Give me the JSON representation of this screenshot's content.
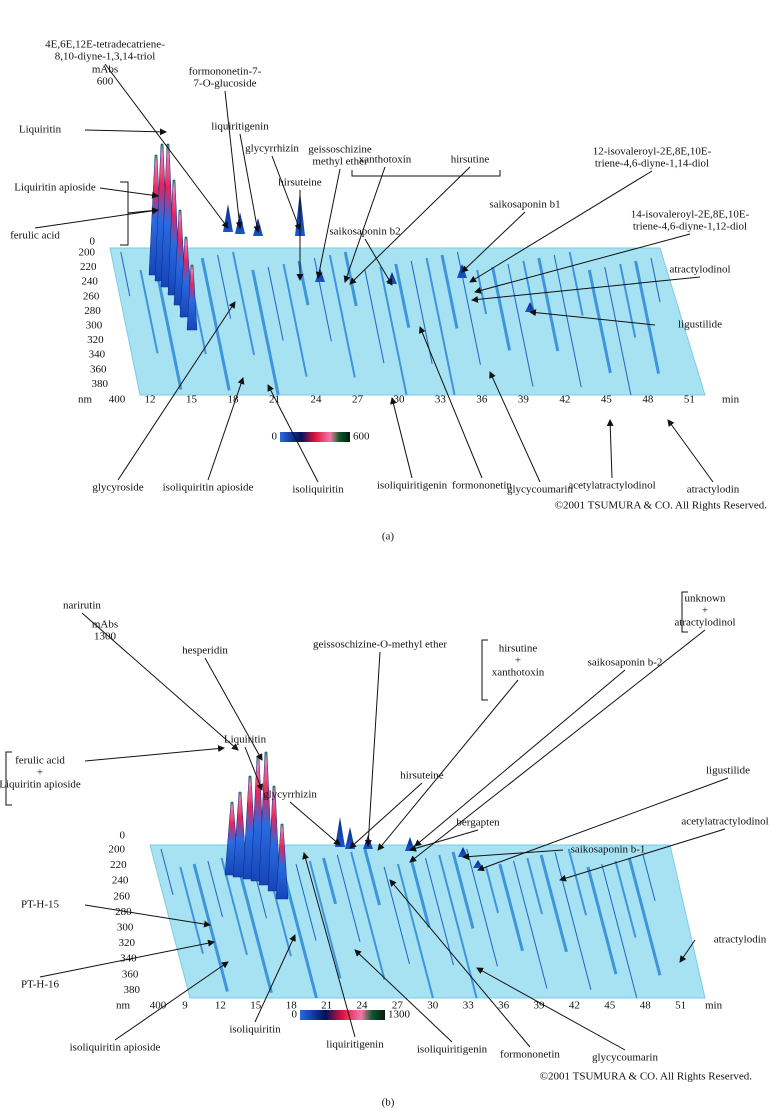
{
  "panels": [
    {
      "panel_label": "(a)",
      "copyright": "©2001 TSUMURA & CO. All Rights Reserved.",
      "z_label": "mAbs",
      "z_max": 600,
      "z_min": 0,
      "wavelength_unit": "nm",
      "wavelength_end": 400,
      "wavelength_ticks": [
        200,
        220,
        240,
        260,
        280,
        300,
        320,
        340,
        360,
        380
      ],
      "time_unit": "min",
      "time_ticks": [
        12,
        15,
        18,
        21,
        24,
        27,
        30,
        33,
        36,
        39,
        42,
        45,
        48,
        51
      ],
      "compounds": [
        {
          "label": [
            "4E,6E,12E-tetradecatriene-",
            "8,10-diyne-1,3,14-triol"
          ]
        },
        {
          "label": [
            "formononetin-7-",
            "7-O-glucoside"
          ]
        },
        {
          "label": [
            "liquiritigenin"
          ]
        },
        {
          "label": [
            "glycyrrhizin"
          ]
        },
        {
          "label": [
            "geissoschizine",
            "methyl ether"
          ]
        },
        {
          "label": [
            "xanthotoxin"
          ]
        },
        {
          "label": [
            "hirsutine"
          ]
        },
        {
          "label": [
            "Liquiritin"
          ]
        },
        {
          "label": [
            "Liquiritin apioside"
          ]
        },
        {
          "label": [
            "ferulic acid"
          ]
        },
        {
          "label": [
            "hirsuteine"
          ]
        },
        {
          "label": [
            "saikosaponin b2"
          ]
        },
        {
          "label": [
            "saikosaponin b1"
          ]
        },
        {
          "label": [
            "12-isovaleroyl-2E,8E,10E-",
            "triene-4,6-diyne-1,14-diol"
          ]
        },
        {
          "label": [
            "14-isovaleroyl-2E,8E,10E-",
            "triene-4,6-diyne-1,12-diol"
          ]
        },
        {
          "label": [
            "atractylodinol"
          ]
        },
        {
          "label": [
            "ligustilide"
          ]
        },
        {
          "label": [
            "glycyroside"
          ]
        },
        {
          "label": [
            "isoliquiritin apioside"
          ]
        },
        {
          "label": [
            "isoliquiritin"
          ]
        },
        {
          "label": [
            "isoliquiritigenin"
          ]
        },
        {
          "label": [
            "formononetin"
          ]
        },
        {
          "label": [
            "glycycoumarin"
          ]
        },
        {
          "label": [
            "acetylatractylodinol"
          ]
        },
        {
          "label": [
            "atractylodin"
          ]
        }
      ]
    },
    {
      "panel_label": "(b)",
      "copyright": "©2001 TSUMURA & CO. All Rights Reserved.",
      "z_label": "mAbs",
      "z_max": 1300,
      "z_min": 0,
      "wavelength_unit": "nm",
      "wavelength_end": 400,
      "wavelength_ticks": [
        200,
        220,
        240,
        260,
        280,
        300,
        320,
        340,
        360,
        380
      ],
      "time_unit": "min",
      "time_ticks": [
        9,
        12,
        15,
        18,
        21,
        24,
        27,
        30,
        33,
        36,
        39,
        42,
        45,
        48,
        51
      ],
      "compounds": [
        {
          "label": [
            "narirutin"
          ]
        },
        {
          "label": [
            "hesperidin"
          ]
        },
        {
          "label": [
            "geissoschizine-O-methyl ether"
          ]
        },
        {
          "label": [
            "hirsutine",
            "+",
            "xanthotoxin"
          ]
        },
        {
          "label": [
            "saikosaponin b-2"
          ]
        },
        {
          "label": [
            "unknown",
            "+",
            "atractylodinol"
          ]
        },
        {
          "label": [
            "ferulic acid",
            "+",
            "Liquiritin apioside"
          ]
        },
        {
          "label": [
            "Liquiritin"
          ]
        },
        {
          "label": [
            "glycyrrhizin"
          ]
        },
        {
          "label": [
            "hirsuteine"
          ]
        },
        {
          "label": [
            "bergapten"
          ]
        },
        {
          "label": [
            "saikosaponin b-1"
          ]
        },
        {
          "label": [
            "ligustilide"
          ]
        },
        {
          "label": [
            "acetylatractylodinol"
          ]
        },
        {
          "label": [
            "atractylodin"
          ]
        },
        {
          "label": [
            "PT-H-15"
          ]
        },
        {
          "label": [
            "PT-H-16"
          ]
        },
        {
          "label": [
            "isoliquiritin apioside"
          ]
        },
        {
          "label": [
            "isoliquiritin"
          ]
        },
        {
          "label": [
            "liquiritigenin"
          ]
        },
        {
          "label": [
            "isoliquiritigenin"
          ]
        },
        {
          "label": [
            "formononetin"
          ]
        },
        {
          "label": [
            "glycycoumarin"
          ]
        }
      ]
    }
  ]
}
